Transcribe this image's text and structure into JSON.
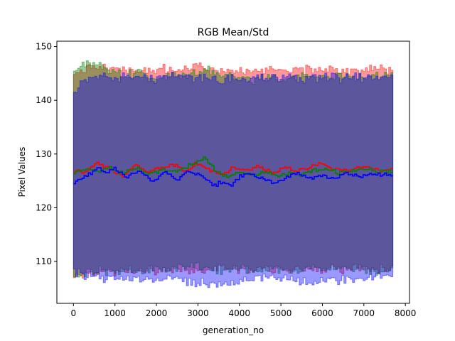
{
  "chart_data": {
    "type": "line",
    "title": "RGB Mean/Std",
    "xlabel": "generation_no",
    "ylabel": "Pixel Values",
    "xlim": [
      -400,
      8100
    ],
    "ylim": [
      102.2,
      151.0
    ],
    "xticks": [
      0,
      1000,
      2000,
      3000,
      4000,
      5000,
      6000,
      7000,
      8000
    ],
    "yticks": [
      110,
      120,
      130,
      140,
      150
    ],
    "x_range": [
      0,
      7700
    ],
    "n_steps": 150,
    "draw_order": [
      "red",
      "green",
      "blue"
    ],
    "series": [
      {
        "color": "#ff0000",
        "mean_knots": [
          [
            0,
            127.0
          ],
          [
            300,
            126.8
          ],
          [
            600,
            128.5
          ],
          [
            900,
            127.0
          ],
          [
            1200,
            126.0
          ],
          [
            1500,
            127.8
          ],
          [
            1800,
            126.5
          ],
          [
            2100,
            127.4
          ],
          [
            2400,
            128.1
          ],
          [
            2700,
            126.6
          ],
          [
            3000,
            128.3
          ],
          [
            3300,
            126.8
          ],
          [
            3600,
            126.3
          ],
          [
            3900,
            127.6
          ],
          [
            4200,
            126.9
          ],
          [
            4500,
            127.8
          ],
          [
            4800,
            126.6
          ],
          [
            5100,
            127.4
          ],
          [
            5400,
            126.9
          ],
          [
            5700,
            127.6
          ],
          [
            6000,
            128.2
          ],
          [
            6300,
            127.1
          ],
          [
            6600,
            126.8
          ],
          [
            6900,
            127.8
          ],
          [
            7200,
            127.2
          ],
          [
            7500,
            126.8
          ],
          [
            7700,
            127.2
          ]
        ],
        "upper_knots": [
          [
            0,
            145.5
          ],
          [
            500,
            146.0
          ],
          [
            1000,
            145.8
          ],
          [
            1500,
            145.3
          ],
          [
            2000,
            145.8
          ],
          [
            2500,
            145.5
          ],
          [
            3000,
            146.2
          ],
          [
            3500,
            145.4
          ],
          [
            4000,
            145.6
          ],
          [
            4500,
            145.2
          ],
          [
            5000,
            145.8
          ],
          [
            5500,
            145.6
          ],
          [
            6000,
            145.9
          ],
          [
            6500,
            145.3
          ],
          [
            7000,
            146.0
          ],
          [
            7700,
            145.6
          ]
        ],
        "lower_knots": [
          [
            0,
            107.5
          ],
          [
            500,
            108.2
          ],
          [
            1000,
            108.0
          ],
          [
            1500,
            108.4
          ],
          [
            2000,
            108.0
          ],
          [
            2500,
            108.6
          ],
          [
            3000,
            108.2
          ],
          [
            3500,
            108.5
          ],
          [
            4000,
            108.4
          ],
          [
            4500,
            108.8
          ],
          [
            5000,
            108.3
          ],
          [
            5500,
            108.8
          ],
          [
            6000,
            108.6
          ],
          [
            6500,
            108.4
          ],
          [
            7000,
            108.8
          ],
          [
            7700,
            108.5
          ]
        ]
      },
      {
        "color": "#008000",
        "mean_knots": [
          [
            0,
            126.5
          ],
          [
            300,
            127.2
          ],
          [
            600,
            126.8
          ],
          [
            900,
            127.5
          ],
          [
            1200,
            126.4
          ],
          [
            1500,
            127.6
          ],
          [
            1800,
            126.2
          ],
          [
            2100,
            127.0
          ],
          [
            2400,
            126.8
          ],
          [
            2700,
            127.4
          ],
          [
            3000,
            128.6
          ],
          [
            3200,
            129.2
          ],
          [
            3450,
            126.8
          ],
          [
            3700,
            125.8
          ],
          [
            4000,
            126.6
          ],
          [
            4300,
            126.0
          ],
          [
            4600,
            126.8
          ],
          [
            4900,
            125.9
          ],
          [
            5200,
            126.6
          ],
          [
            5500,
            126.2
          ],
          [
            5800,
            126.9
          ],
          [
            6100,
            127.3
          ],
          [
            6400,
            126.6
          ],
          [
            6700,
            127.0
          ],
          [
            7000,
            127.4
          ],
          [
            7300,
            126.7
          ],
          [
            7700,
            127.0
          ]
        ],
        "upper_knots": [
          [
            0,
            145.0
          ],
          [
            400,
            147.2
          ],
          [
            800,
            145.8
          ],
          [
            1200,
            144.6
          ],
          [
            1600,
            145.3
          ],
          [
            2000,
            144.2
          ],
          [
            2400,
            144.8
          ],
          [
            2800,
            144.4
          ],
          [
            3200,
            145.6
          ],
          [
            3600,
            144.4
          ],
          [
            4000,
            144.2
          ],
          [
            4400,
            143.8
          ],
          [
            4800,
            144.6
          ],
          [
            5200,
            144.0
          ],
          [
            5600,
            144.8
          ],
          [
            6000,
            144.4
          ],
          [
            6400,
            144.6
          ],
          [
            6800,
            144.2
          ],
          [
            7200,
            144.7
          ],
          [
            7700,
            144.5
          ]
        ],
        "lower_knots": [
          [
            0,
            107.0
          ],
          [
            400,
            107.8
          ],
          [
            800,
            108.4
          ],
          [
            1200,
            108.0
          ],
          [
            1600,
            108.6
          ],
          [
            2000,
            108.3
          ],
          [
            2400,
            108.8
          ],
          [
            2800,
            109.0
          ],
          [
            3200,
            108.6
          ],
          [
            3600,
            108.4
          ],
          [
            4000,
            108.8
          ],
          [
            4400,
            108.2
          ],
          [
            4800,
            108.6
          ],
          [
            5200,
            108.0
          ],
          [
            5600,
            108.6
          ],
          [
            6000,
            108.8
          ],
          [
            6400,
            108.4
          ],
          [
            6800,
            108.7
          ],
          [
            7200,
            108.2
          ],
          [
            7700,
            108.6
          ]
        ]
      },
      {
        "color": "#0000ff",
        "mean_knots": [
          [
            0,
            124.5
          ],
          [
            300,
            125.8
          ],
          [
            600,
            127.6
          ],
          [
            800,
            126.2
          ],
          [
            1000,
            127.3
          ],
          [
            1300,
            125.6
          ],
          [
            1600,
            126.8
          ],
          [
            1900,
            124.8
          ],
          [
            2200,
            126.4
          ],
          [
            2500,
            125.3
          ],
          [
            2800,
            126.7
          ],
          [
            3100,
            126.1
          ],
          [
            3400,
            124.2
          ],
          [
            3600,
            124.8
          ],
          [
            3800,
            123.8
          ],
          [
            4000,
            125.8
          ],
          [
            4300,
            126.4
          ],
          [
            4600,
            125.2
          ],
          [
            4900,
            124.6
          ],
          [
            5100,
            125.6
          ],
          [
            5400,
            126.4
          ],
          [
            5700,
            125.3
          ],
          [
            6000,
            126.1
          ],
          [
            6300,
            125.4
          ],
          [
            6600,
            126.6
          ],
          [
            6900,
            125.6
          ],
          [
            7200,
            126.2
          ],
          [
            7700,
            126.0
          ]
        ],
        "upper_knots": [
          [
            0,
            141.0
          ],
          [
            250,
            143.8
          ],
          [
            600,
            144.8
          ],
          [
            1000,
            144.2
          ],
          [
            1500,
            144.4
          ],
          [
            2000,
            144.0
          ],
          [
            2500,
            144.6
          ],
          [
            3000,
            144.2
          ],
          [
            3500,
            143.8
          ],
          [
            4000,
            144.2
          ],
          [
            4500,
            144.0
          ],
          [
            5000,
            144.3
          ],
          [
            5500,
            144.0
          ],
          [
            6000,
            144.4
          ],
          [
            6500,
            144.1
          ],
          [
            7000,
            144.3
          ],
          [
            7700,
            144.5
          ]
        ],
        "lower_knots": [
          [
            0,
            108.0
          ],
          [
            400,
            107.2
          ],
          [
            800,
            106.8
          ],
          [
            1200,
            106.6
          ],
          [
            1600,
            106.9
          ],
          [
            2000,
            106.5
          ],
          [
            2400,
            106.8
          ],
          [
            2800,
            106.3
          ],
          [
            3200,
            106.0
          ],
          [
            3400,
            105.4
          ],
          [
            3800,
            105.8
          ],
          [
            4200,
            106.3
          ],
          [
            4600,
            106.9
          ],
          [
            5000,
            106.6
          ],
          [
            5400,
            106.2
          ],
          [
            5800,
            106.0
          ],
          [
            6200,
            106.4
          ],
          [
            6600,
            106.8
          ],
          [
            7000,
            107.0
          ],
          [
            7400,
            107.2
          ],
          [
            7700,
            107.4
          ]
        ]
      }
    ]
  }
}
